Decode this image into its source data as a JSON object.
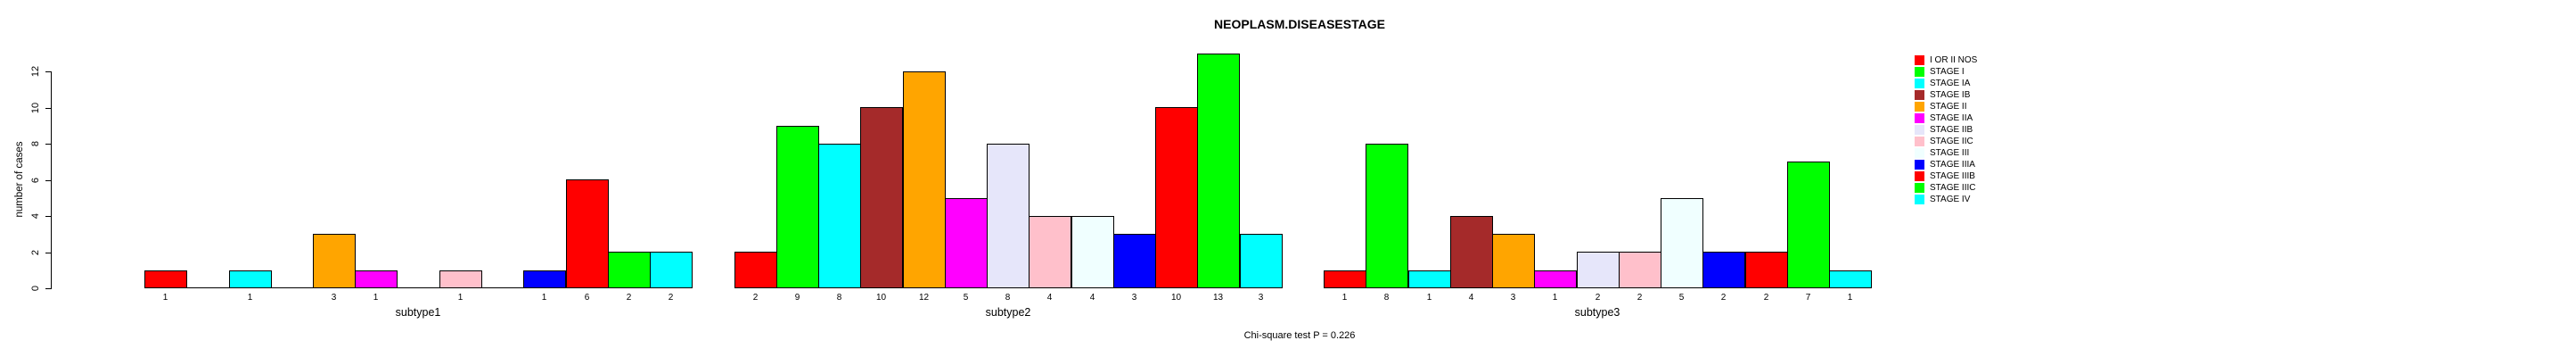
{
  "chart_data": {
    "type": "bar",
    "title": "NEOPLASM.DISEASESTAGE",
    "ylabel": "number of cases",
    "xlabel": "",
    "footer": "Chi-square test P = 0.226",
    "ylim": [
      0,
      12
    ],
    "yticks": [
      0,
      2,
      4,
      6,
      8,
      10,
      12
    ],
    "grid": false,
    "legend_position": "right",
    "legend": [
      {
        "label": "I OR II NOS",
        "color": "#FF0000"
      },
      {
        "label": "STAGE I",
        "color": "#00FF00"
      },
      {
        "label": "STAGE IA",
        "color": "#00FFFF"
      },
      {
        "label": "STAGE IB",
        "color": "#A52A2A"
      },
      {
        "label": "STAGE II",
        "color": "#FFA500"
      },
      {
        "label": "STAGE IIA",
        "color": "#FF00FF"
      },
      {
        "label": "STAGE IIB",
        "color": "#E6E6FA"
      },
      {
        "label": "STAGE IIC",
        "color": "#FFC0CB"
      },
      {
        "label": "STAGE III",
        "color": "#F0FFFF"
      },
      {
        "label": "STAGE IIIA",
        "color": "#0000FF"
      },
      {
        "label": "STAGE IIIB",
        "color": "#FF0000"
      },
      {
        "label": "STAGE IIIC",
        "color": "#00FF00"
      },
      {
        "label": "STAGE IV",
        "color": "#00FFFF"
      }
    ],
    "categories": [
      "subtype1",
      "subtype2",
      "subtype3"
    ],
    "groups": [
      {
        "label": "subtype1",
        "values": [
          1,
          0,
          1,
          0,
          3,
          1,
          0,
          1,
          0,
          1,
          6,
          2,
          2
        ]
      },
      {
        "label": "subtype2",
        "values": [
          2,
          9,
          8,
          10,
          12,
          5,
          8,
          4,
          4,
          3,
          10,
          13,
          3
        ]
      },
      {
        "label": "subtype3",
        "values": [
          1,
          8,
          1,
          4,
          3,
          1,
          2,
          2,
          5,
          2,
          2,
          7,
          1
        ]
      }
    ]
  }
}
